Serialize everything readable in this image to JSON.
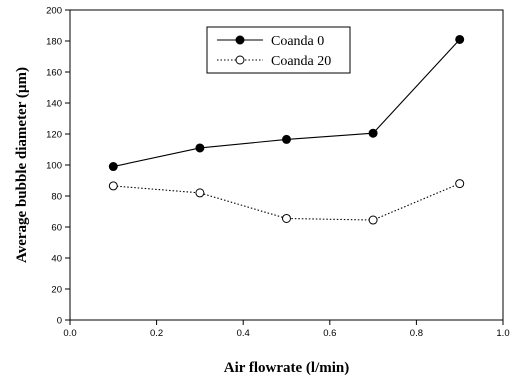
{
  "chart_data": {
    "type": "line",
    "title": "",
    "xlabel": "Air flowrate  (l/min)",
    "ylabel": "Average bubble diameter  (µm)",
    "xlim": [
      0.0,
      1.0
    ],
    "ylim": [
      0,
      200
    ],
    "xticks": [
      0.0,
      0.2,
      0.4,
      0.6,
      0.8,
      1.0
    ],
    "xtick_labels": [
      "0.0",
      "0.2",
      "0.4",
      "0.6",
      "0.8",
      "1.0"
    ],
    "yticks": [
      0,
      20,
      40,
      60,
      80,
      100,
      120,
      140,
      160,
      180,
      200
    ],
    "ytick_labels": [
      "0",
      "20",
      "40",
      "60",
      "80",
      "100",
      "120",
      "140",
      "160",
      "180",
      "200"
    ],
    "grid": false,
    "legend_position": "top-center",
    "series": [
      {
        "name": "Coanda  0",
        "marker": "filled-circle",
        "line_style": "solid",
        "color": "#000000",
        "x": [
          0.1,
          0.3,
          0.5,
          0.7,
          0.9
        ],
        "y": [
          99,
          111,
          116.5,
          120.5,
          181
        ]
      },
      {
        "name": "Coanda  20",
        "marker": "open-circle",
        "line_style": "dotted",
        "color": "#000000",
        "x": [
          0.1,
          0.3,
          0.5,
          0.7,
          0.9
        ],
        "y": [
          86.5,
          82,
          65.5,
          64.5,
          88
        ]
      }
    ]
  }
}
